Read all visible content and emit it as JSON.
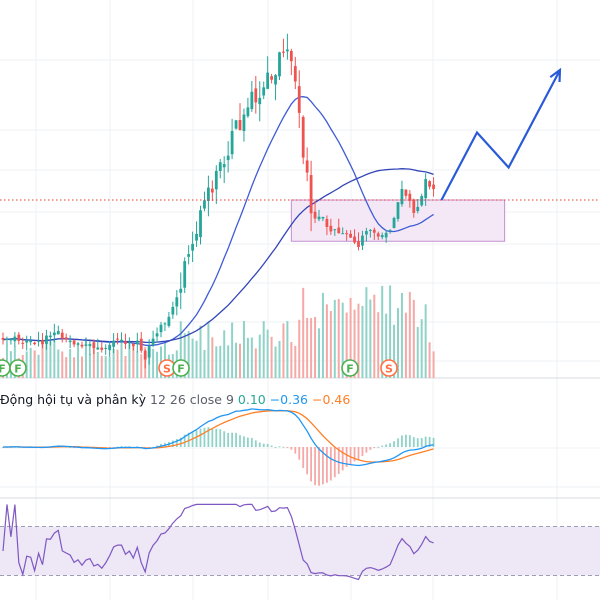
{
  "colors": {
    "up": "#26a69a",
    "down": "#ef5350",
    "vol_up": "#8fd3c8",
    "vol_down": "#f5a9a6",
    "ma_fast": "#3f5bd8",
    "ma_slow": "#3346b8",
    "projection": "#2a5bd7",
    "price_line": "#e53935",
    "zone_fill": "#f4e8f6",
    "zone_stroke": "#c48ed2",
    "macd": "#2196f3",
    "signal": "#ff7f27",
    "rsi": "#7e57c2",
    "rsi_band": "#ede7f6",
    "grid": "#eef0f3"
  },
  "event_badges": [
    {
      "letter": "F",
      "color": "#4caf50"
    },
    {
      "letter": "F",
      "color": "#4caf50"
    },
    {
      "letter": "S",
      "color": "#ff7043"
    },
    {
      "letter": "F",
      "color": "#4caf50"
    },
    {
      "letter": "F",
      "color": "#4caf50"
    },
    {
      "letter": "S",
      "color": "#ff7043"
    }
  ],
  "macd_legend": {
    "name": "Động hội tụ và phân kỳ",
    "params": "12 26 close 9",
    "histogram": "0.10",
    "macd": "−0.36",
    "signal": "−0.46"
  },
  "chart_data": [
    {
      "type": "candlestick",
      "panel": "price",
      "price_reference_level": 17.0,
      "support_zone": {
        "x_from": 73,
        "x_to": 127,
        "low": 15.35,
        "high": 17.0
      },
      "projection_path": [
        [
          111,
          17.0
        ],
        [
          120,
          19.7
        ],
        [
          128,
          18.3
        ],
        [
          141,
          22.2
        ]
      ],
      "moving_averages": [
        "fast",
        "slow"
      ],
      "ylim": [
        10.0,
        25.0
      ],
      "x_count": 110
    },
    {
      "type": "bar",
      "panel": "volume"
    },
    {
      "type": "line",
      "panel": "macd",
      "series": [
        {
          "key": "macd"
        },
        {
          "key": "signal"
        },
        {
          "key": "histogram"
        }
      ],
      "last": {
        "histogram": 0.1,
        "macd": -0.36,
        "signal": -0.46
      }
    },
    {
      "type": "line",
      "panel": "rsi",
      "band": [
        30,
        70
      ],
      "ylim": [
        10,
        90
      ]
    }
  ]
}
